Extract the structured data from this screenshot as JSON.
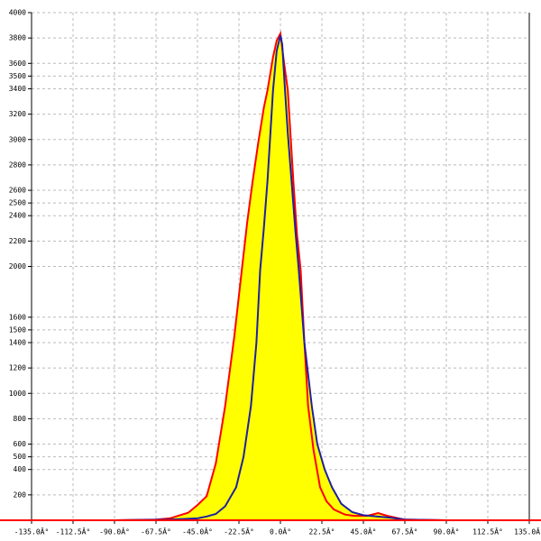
{
  "chart_data": {
    "type": "line",
    "grid": true,
    "fill": "#ffff00",
    "xlim": [
      -135,
      135
    ],
    "ylim": [
      0,
      4000
    ],
    "xticks": [
      {
        "value": -135,
        "label": "-135.0Â°"
      },
      {
        "value": -112.5,
        "label": "-112.5Â°"
      },
      {
        "value": -90,
        "label": "-90.0Â°"
      },
      {
        "value": -67.5,
        "label": "-67.5Â°"
      },
      {
        "value": -45,
        "label": "-45.0Â°"
      },
      {
        "value": -22.5,
        "label": "-22.5Â°"
      },
      {
        "value": 0,
        "label": "0.0Â°"
      },
      {
        "value": 22.5,
        "label": "22.5Â°"
      },
      {
        "value": 45,
        "label": "45.0Â°"
      },
      {
        "value": 67.5,
        "label": "67.5Â°"
      },
      {
        "value": 90,
        "label": "90.0Â°"
      },
      {
        "value": 112.5,
        "label": "112.5Â°"
      },
      {
        "value": 135,
        "label": "135.0Â°"
      }
    ],
    "yticks": [
      200,
      400,
      500,
      600,
      800,
      1000,
      1200,
      1400,
      1500,
      1600,
      2000,
      2200,
      2400,
      2500,
      2600,
      2800,
      3000,
      3200,
      3400,
      3500,
      3600,
      3800,
      4000
    ],
    "series": [
      {
        "color": "#ff0000",
        "x": [
          -90,
          -67.5,
          -60,
          -50,
          -45,
          -40,
          -35,
          -30,
          -25,
          -21,
          -18,
          -15,
          -12,
          -9,
          -7,
          -4,
          -2,
          0,
          2,
          4,
          7,
          9,
          11,
          13,
          15,
          18,
          21.5,
          25,
          29,
          35,
          40,
          47,
          53,
          58,
          67.5,
          90
        ],
        "values": [
          0,
          5,
          15,
          60,
          120,
          190,
          450,
          900,
          1450,
          1967,
          2350,
          2677,
          2980,
          3250,
          3388,
          3650,
          3780,
          3835,
          3600,
          3388,
          2677,
          2250,
          1967,
          1400,
          900,
          550,
          260,
          150,
          85,
          45,
          35,
          35,
          57,
          35,
          5,
          0
        ]
      },
      {
        "color": "#2020a0",
        "x": [
          -90,
          -60,
          -45,
          -40,
          -35,
          -30,
          -24,
          -20,
          -16,
          -13,
          -11,
          -9,
          -7,
          -4,
          -2,
          0,
          1,
          2.5,
          4,
          6,
          8,
          10,
          13,
          17,
          20,
          24,
          28,
          33,
          39,
          45,
          52,
          60,
          67.5,
          90
        ],
        "values": [
          0,
          5,
          15,
          30,
          50,
          110,
          260,
          500,
          900,
          1400,
          1967,
          2300,
          2677,
          3388,
          3700,
          3820,
          3750,
          3388,
          3050,
          2677,
          2300,
          1967,
          1400,
          900,
          600,
          400,
          260,
          130,
          64,
          40,
          30,
          20,
          5,
          0
        ]
      }
    ]
  }
}
